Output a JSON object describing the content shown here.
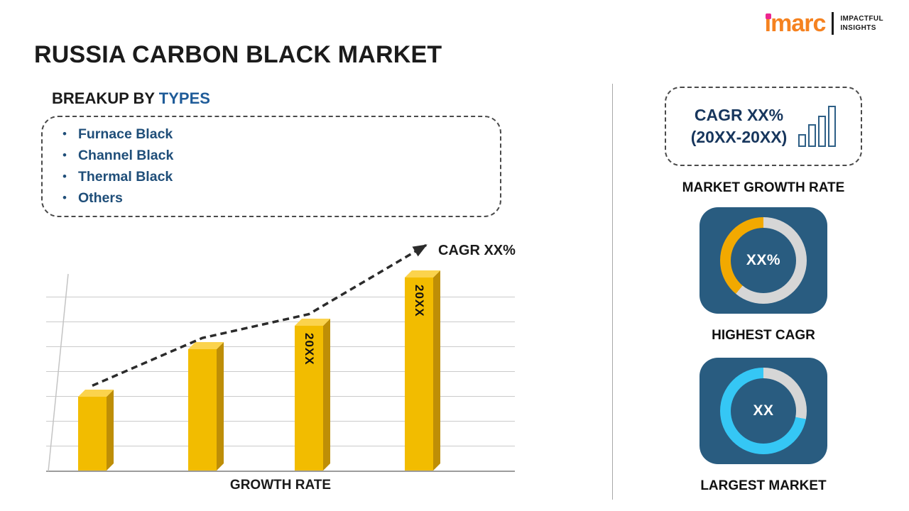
{
  "header": {
    "title": "RUSSIA CARBON BLACK MARKET",
    "logo": {
      "brand": "imarc",
      "tagline": [
        "IMPACTFUL",
        "INSIGHTS"
      ],
      "brand_color": "#F58220",
      "dot_color": "#EC268F"
    }
  },
  "breakup": {
    "heading_prefix": "BREAKUP BY ",
    "heading_highlight": "TYPES",
    "items": [
      "Furnace Black",
      "Channel Black",
      "Thermal Black",
      "Others"
    ]
  },
  "chart_data": {
    "type": "bar",
    "categories": [
      "",
      "",
      "20XX",
      "20XX"
    ],
    "values": [
      37,
      61,
      73,
      97
    ],
    "ylim": [
      0,
      100
    ],
    "y_gridlines": 8,
    "xlabel": "GROWTH RATE",
    "trend_label": "CAGR XX%",
    "trend_style": "dashed-arrow",
    "bar_color": "#F2BC00",
    "bar_side_color": "#BE8E06",
    "bar_top_color": "#FBD34D"
  },
  "sidebar": {
    "card_color": "#295C80",
    "growth_box": {
      "line1": "CAGR XX%",
      "line2": "(20XX-20XX)"
    },
    "market_growth_rate_label": "MARKET GROWTH RATE",
    "highest_cagr": {
      "center_value": "XX%",
      "caption": "HIGHEST CAGR",
      "segment_percent": 39,
      "segment_color": "#F2A900",
      "track_color": "#D6D6D6"
    },
    "largest_market": {
      "center_value": "XX",
      "caption": "LARGEST MARKET",
      "segment_percent": 72,
      "segment_color": "#35C7F5",
      "track_color": "#D6D6D6"
    }
  }
}
